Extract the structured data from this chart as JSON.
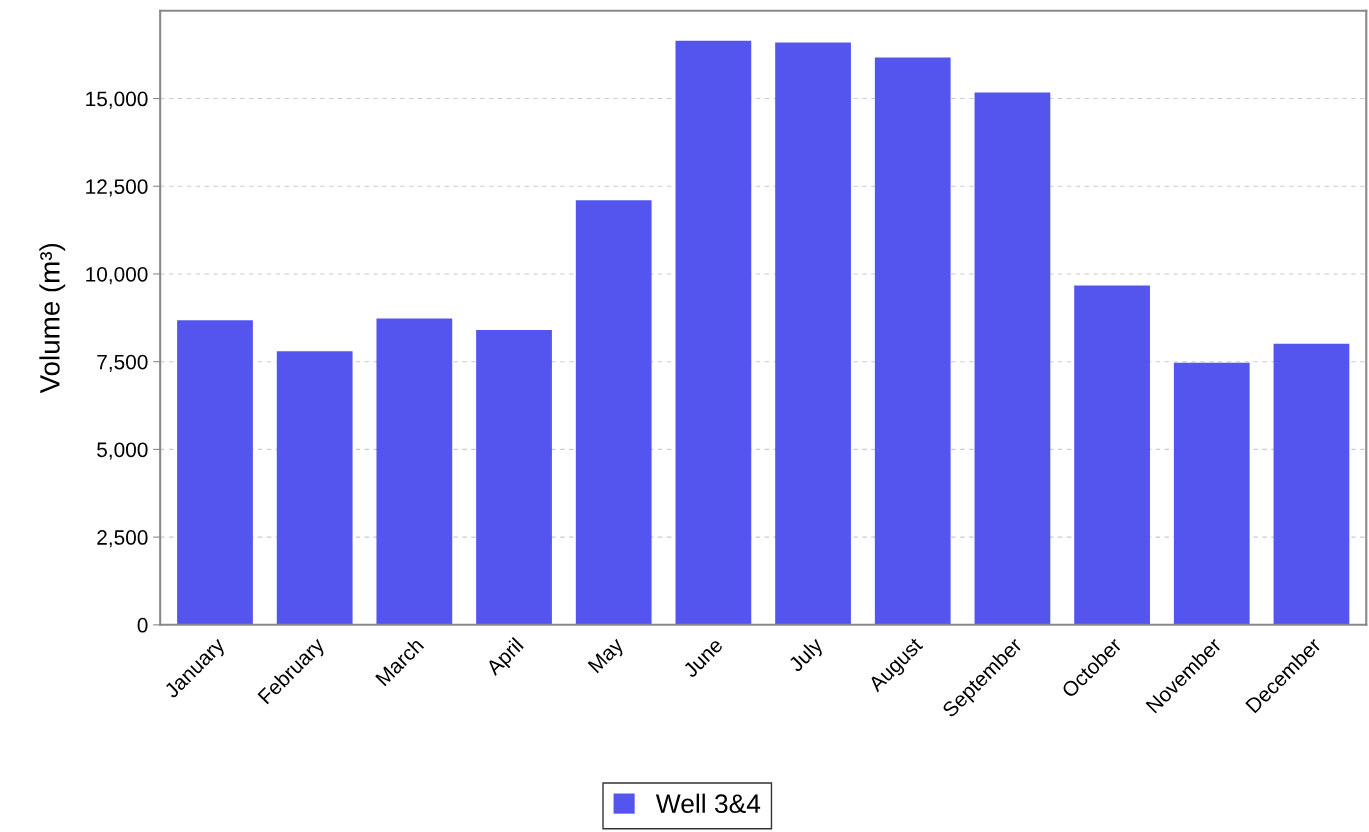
{
  "chart_data": {
    "type": "bar",
    "ylabel": "Volume (m³)",
    "categories": [
      "January",
      "February",
      "March",
      "April",
      "May",
      "June",
      "July",
      "August",
      "September",
      "October",
      "November",
      "December"
    ],
    "series": [
      {
        "name": "Well 3&4",
        "color": "#5454ee",
        "values": [
          8680,
          7800,
          8730,
          8400,
          12100,
          16650,
          16600,
          16170,
          15170,
          9670,
          7470,
          8010
        ]
      }
    ],
    "ylim": [
      0,
      17500
    ],
    "yticks": [
      0,
      {
        "value": 2500,
        "label": "2,500"
      },
      {
        "value": 5000,
        "label": "5,000"
      },
      {
        "value": 7500,
        "label": "7,500"
      },
      {
        "value": 10000,
        "label": "10,000"
      },
      {
        "value": 12500,
        "label": "12,500"
      },
      {
        "value": 15000,
        "label": "15,000"
      }
    ],
    "grid": "y",
    "legend": "bottom"
  }
}
